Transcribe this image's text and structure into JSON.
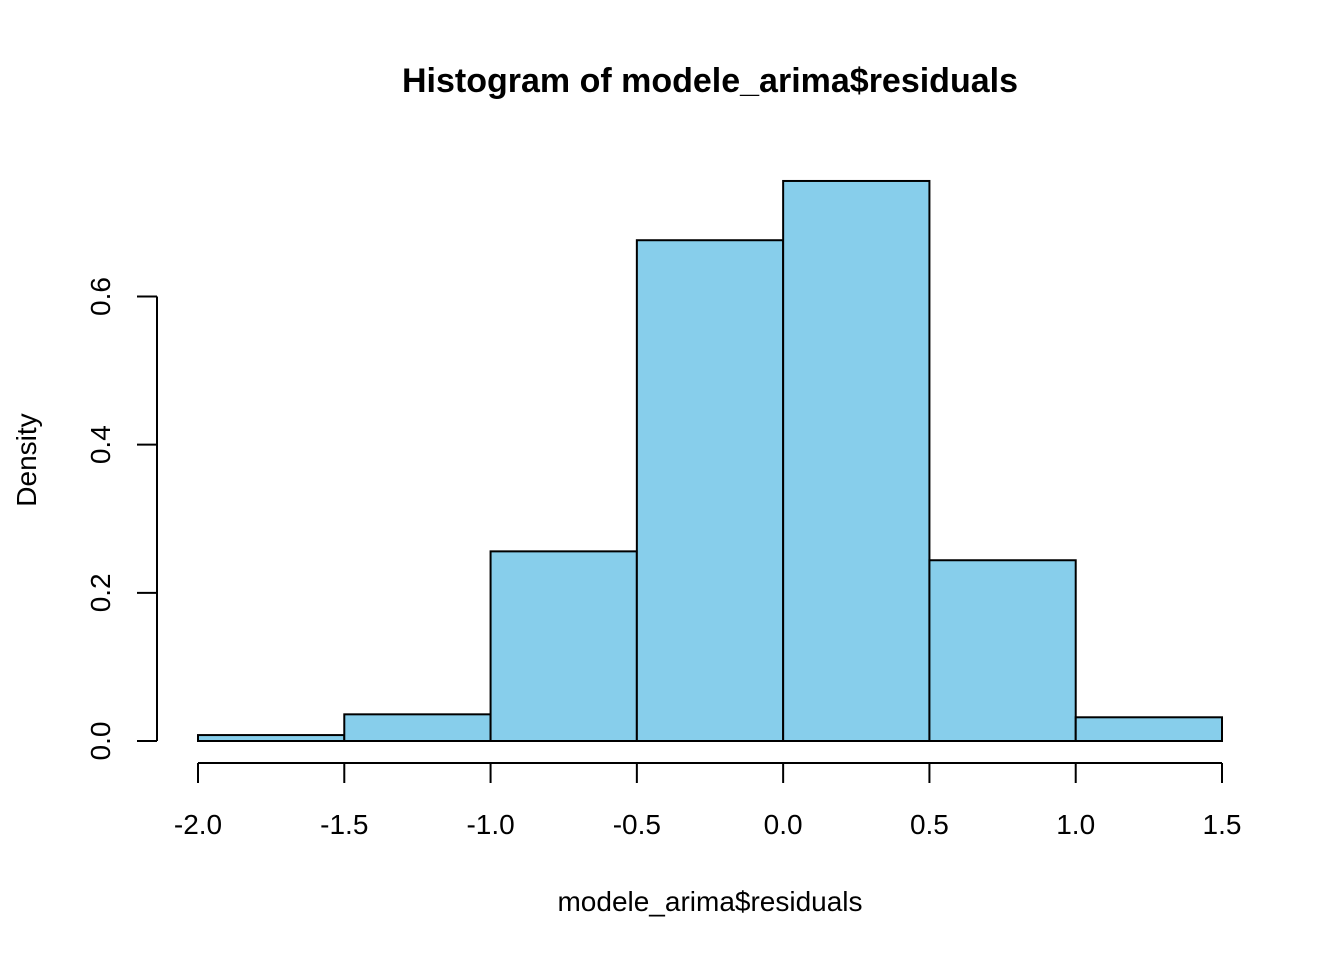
{
  "chart_data": {
    "type": "bar",
    "title": "Histogram of modele_arima$residuals",
    "xlabel": "modele_arima$residuals",
    "ylabel": "Density",
    "bins": [
      {
        "from": -2.0,
        "to": -1.5,
        "density": 0.008
      },
      {
        "from": -1.5,
        "to": -1.0,
        "density": 0.036
      },
      {
        "from": -1.0,
        "to": -0.5,
        "density": 0.256
      },
      {
        "from": -0.5,
        "to": 0.0,
        "density": 0.676
      },
      {
        "from": 0.0,
        "to": 0.5,
        "density": 0.756
      },
      {
        "from": 0.5,
        "to": 1.0,
        "density": 0.244
      },
      {
        "from": 1.0,
        "to": 1.5,
        "density": 0.032
      }
    ],
    "xlim": [
      -2.0,
      1.5
    ],
    "ylim": [
      0,
      0.76
    ],
    "x_ticks": [
      -2.0,
      -1.5,
      -1.0,
      -0.5,
      0.0,
      0.5,
      1.0,
      1.5
    ],
    "x_tick_labels": [
      "-2.0",
      "-1.5",
      "-1.0",
      "-0.5",
      "0.0",
      "0.5",
      "1.0",
      "1.5"
    ],
    "y_ticks": [
      0.0,
      0.2,
      0.4,
      0.6
    ],
    "y_tick_labels": [
      "0.0",
      "0.2",
      "0.4",
      "0.6"
    ],
    "bar_color": "#87CEEB",
    "border_color": "#000000",
    "grid": false
  }
}
